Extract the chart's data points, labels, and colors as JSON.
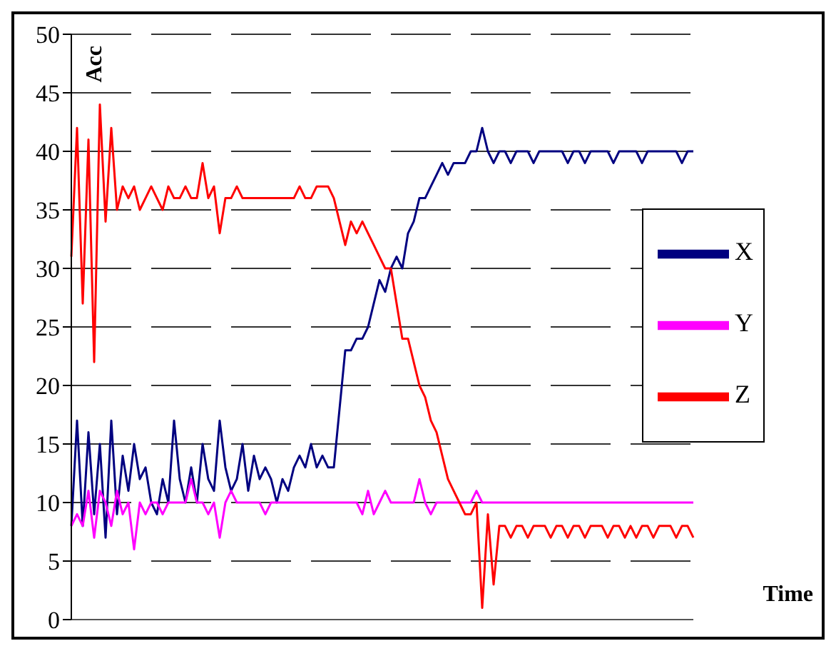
{
  "chart_data": {
    "type": "line",
    "xlabel": "Time",
    "ylabel": "Acc",
    "categories": [
      null,
      null,
      null,
      null,
      null,
      null,
      null,
      null,
      null,
      null,
      null,
      null,
      null,
      null,
      null,
      null,
      null,
      null,
      null,
      null,
      null,
      null,
      null,
      null,
      null,
      null,
      null,
      null,
      null,
      null,
      null,
      null,
      null,
      null,
      null,
      null,
      null,
      null,
      null,
      null,
      null,
      null,
      null,
      null,
      null,
      null,
      null,
      null,
      null,
      null,
      null,
      null,
      null,
      null,
      null,
      null,
      null,
      null,
      null,
      null,
      null,
      null,
      null,
      null,
      null,
      null,
      null,
      null,
      null,
      null,
      null,
      null,
      null,
      null,
      null,
      null,
      null,
      null,
      null,
      null,
      null,
      null,
      null,
      null,
      null,
      null,
      null,
      null,
      null,
      null,
      null,
      null,
      null,
      null,
      null,
      null,
      null,
      null,
      null,
      null,
      null,
      null,
      null,
      null,
      null,
      null,
      null,
      null,
      null,
      null
    ],
    "series": [
      {
        "name": "X",
        "color": "#000080",
        "values": [
          8,
          17,
          8,
          16,
          9,
          15,
          7,
          17,
          9,
          14,
          11,
          15,
          12,
          13,
          10,
          9,
          12,
          10,
          17,
          12,
          10,
          13,
          10,
          15,
          12,
          11,
          17,
          13,
          11,
          12,
          15,
          11,
          14,
          12,
          13,
          12,
          10,
          12,
          11,
          13,
          14,
          13,
          15,
          13,
          14,
          13,
          13,
          18,
          23,
          23,
          24,
          24,
          25,
          27,
          29,
          28,
          30,
          31,
          30,
          33,
          34,
          36,
          36,
          37,
          38,
          39,
          38,
          39,
          39,
          39,
          40,
          40,
          42,
          40,
          39,
          40,
          40,
          39,
          40,
          40,
          40,
          39,
          40,
          40,
          40,
          40,
          40,
          39,
          40,
          40,
          39,
          40,
          40,
          40,
          40,
          39,
          40,
          40,
          40,
          40,
          39,
          40,
          40,
          40,
          40,
          40,
          40,
          39,
          40,
          40
        ]
      },
      {
        "name": "Y",
        "color": "#ff00ff",
        "values": [
          8,
          9,
          8,
          11,
          7,
          11,
          10,
          8,
          11,
          9,
          10,
          6,
          10,
          9,
          10,
          10,
          9,
          10,
          10,
          10,
          10,
          12,
          10,
          10,
          9,
          10,
          7,
          10,
          11,
          10,
          10,
          10,
          10,
          10,
          9,
          10,
          10,
          10,
          10,
          10,
          10,
          10,
          10,
          10,
          10,
          10,
          10,
          10,
          10,
          10,
          10,
          9,
          11,
          9,
          10,
          11,
          10,
          10,
          10,
          10,
          10,
          12,
          10,
          9,
          10,
          10,
          10,
          10,
          10,
          10,
          10,
          11,
          10,
          10,
          10,
          10,
          10,
          10,
          10,
          10,
          10,
          10,
          10,
          10,
          10,
          10,
          10,
          10,
          10,
          10,
          10,
          10,
          10,
          10,
          10,
          10,
          10,
          10,
          10,
          10,
          10,
          10,
          10,
          10,
          10,
          10,
          10,
          10,
          10,
          10
        ]
      },
      {
        "name": "Z",
        "color": "#ff0000",
        "values": [
          31,
          42,
          27,
          41,
          22,
          44,
          34,
          42,
          35,
          37,
          36,
          37,
          35,
          36,
          37,
          36,
          35,
          37,
          36,
          36,
          37,
          36,
          36,
          39,
          36,
          37,
          33,
          36,
          36,
          37,
          36,
          36,
          36,
          36,
          36,
          36,
          36,
          36,
          36,
          36,
          37,
          36,
          36,
          37,
          37,
          37,
          36,
          34,
          32,
          34,
          33,
          34,
          33,
          32,
          31,
          30,
          30,
          27,
          24,
          24,
          22,
          20,
          19,
          17,
          16,
          14,
          12,
          11,
          10,
          9,
          9,
          10,
          1,
          9,
          3,
          8,
          8,
          7,
          8,
          8,
          7,
          8,
          8,
          8,
          7,
          8,
          8,
          7,
          8,
          8,
          7,
          8,
          8,
          8,
          7,
          8,
          8,
          7,
          8,
          7,
          8,
          8,
          7,
          8,
          8,
          8,
          7,
          8,
          8,
          7
        ]
      }
    ],
    "ylim": [
      0,
      50
    ],
    "yticks": [
      0,
      5,
      10,
      15,
      20,
      25,
      30,
      35,
      40,
      45,
      50
    ],
    "grid": "y",
    "legend": "right",
    "marker": "none",
    "line_style": "solid"
  }
}
